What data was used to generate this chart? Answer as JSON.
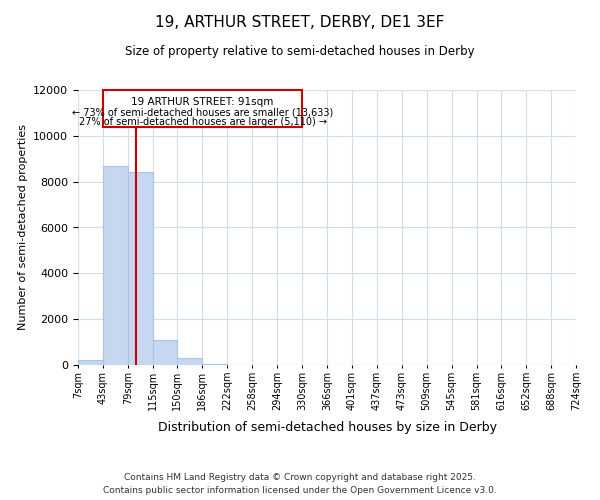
{
  "title": "19, ARTHUR STREET, DERBY, DE1 3EF",
  "subtitle": "Size of property relative to semi-detached houses in Derby",
  "xlabel": "Distribution of semi-detached houses by size in Derby",
  "ylabel": "Number of semi-detached properties",
  "property_size": 91,
  "property_label": "19 ARTHUR STREET: 91sqm",
  "pct_smaller": 73,
  "n_smaller": 13633,
  "pct_larger": 27,
  "n_larger": 5110,
  "bar_color": "#c5d8f0",
  "bar_edge_color": "#aac4e8",
  "annotation_border_color": "#cc0000",
  "vline_color": "#cc0000",
  "ylim": [
    0,
    12000
  ],
  "yticks": [
    0,
    2000,
    4000,
    6000,
    8000,
    10000,
    12000
  ],
  "bin_edges": [
    7,
    43,
    79,
    115,
    150,
    186,
    222,
    258,
    294,
    330,
    366,
    401,
    437,
    473,
    509,
    545,
    581,
    616,
    652,
    688,
    724
  ],
  "bin_labels": [
    "7sqm",
    "43sqm",
    "79sqm",
    "115sqm",
    "150sqm",
    "186sqm",
    "222sqm",
    "258sqm",
    "294sqm",
    "330sqm",
    "366sqm",
    "401sqm",
    "437sqm",
    "473sqm",
    "509sqm",
    "545sqm",
    "581sqm",
    "616sqm",
    "652sqm",
    "688sqm",
    "724sqm"
  ],
  "counts": [
    200,
    8700,
    8400,
    1100,
    300,
    50,
    0,
    0,
    0,
    0,
    0,
    0,
    0,
    0,
    0,
    0,
    0,
    0,
    0,
    0
  ],
  "footer_line1": "Contains HM Land Registry data © Crown copyright and database right 2025.",
  "footer_line2": "Contains public sector information licensed under the Open Government Licence v3.0.",
  "background_color": "#ffffff",
  "plot_bg_color": "#ffffff",
  "grid_color": "#d0dcf0"
}
